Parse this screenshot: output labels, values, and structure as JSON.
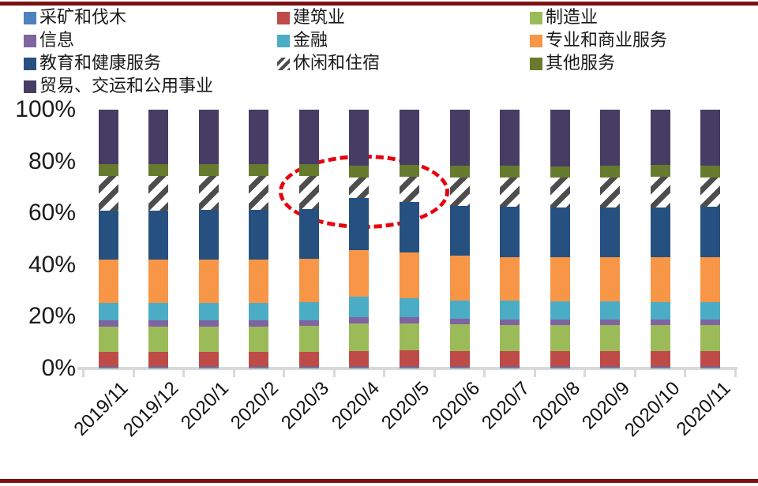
{
  "page": {
    "background": "#ffffff",
    "top_rule_color": "#7a1113",
    "bottom_rule_color": "#7a1113"
  },
  "axis": {
    "line_color": "#d9d9d9",
    "label_color": "#1a1a1a"
  },
  "chart_data": {
    "type": "bar",
    "stacked": true,
    "units": "percent-of-total",
    "title": "",
    "xlabel": "",
    "ylabel": "",
    "ylim": [
      0,
      100
    ],
    "grid": false,
    "legend_position": "top",
    "y_ticks": [
      "0%",
      "20%",
      "40%",
      "60%",
      "80%",
      "100%"
    ],
    "categories": [
      "2019/11",
      "2019/12",
      "2020/1",
      "2020/2",
      "2020/3",
      "2020/4",
      "2020/5",
      "2020/6",
      "2020/7",
      "2020/8",
      "2020/9",
      "2020/10",
      "2020/11"
    ],
    "series": [
      {
        "name": "采矿和伐木",
        "color": "#4F81BD",
        "values": [
          0.5,
          0.5,
          0.5,
          0.5,
          0.5,
          0.6,
          0.6,
          0.5,
          0.5,
          0.5,
          0.5,
          0.5,
          0.5
        ]
      },
      {
        "name": "建筑业",
        "color": "#BE4B48",
        "values": [
          5.8,
          5.8,
          5.8,
          5.8,
          5.9,
          6.1,
          6.4,
          6.2,
          6.1,
          6.1,
          6.1,
          6.1,
          6.1
        ]
      },
      {
        "name": "制造业",
        "color": "#9BBB59",
        "values": [
          10.0,
          10.0,
          10.0,
          10.0,
          10.1,
          10.6,
          10.5,
          10.3,
          10.2,
          10.1,
          10.1,
          10.1,
          10.1
        ]
      },
      {
        "name": "信息",
        "color": "#8064A2",
        "values": [
          2.2,
          2.2,
          2.2,
          2.2,
          2.2,
          2.4,
          2.3,
          2.2,
          2.2,
          2.2,
          2.2,
          2.2,
          2.2
        ]
      },
      {
        "name": "金融",
        "color": "#4BACC6",
        "values": [
          6.8,
          6.8,
          6.8,
          6.8,
          6.9,
          7.9,
          7.5,
          7.2,
          7.1,
          7.0,
          7.0,
          6.9,
          6.9
        ]
      },
      {
        "name": "专业和商业服务",
        "color": "#F79646",
        "values": [
          16.7,
          16.7,
          16.8,
          16.8,
          16.9,
          18.0,
          17.6,
          17.1,
          17.0,
          17.0,
          17.1,
          17.2,
          17.2
        ]
      },
      {
        "name": "教育和健康服务",
        "color": "#255080",
        "values": [
          19.1,
          19.1,
          19.2,
          19.2,
          19.2,
          20.2,
          19.6,
          19.3,
          19.3,
          19.3,
          19.3,
          19.4,
          19.5
        ]
      },
      {
        "name": "休闲和住宿",
        "color": "#4D4D4D",
        "pattern": "diagonal-hatch",
        "values": [
          13.2,
          13.2,
          13.2,
          13.2,
          12.6,
          8.1,
          9.7,
          11.0,
          11.3,
          11.5,
          11.6,
          11.7,
          11.4
        ]
      },
      {
        "name": "其他服务",
        "color": "#667B2E",
        "values": [
          4.6,
          4.6,
          4.6,
          4.6,
          4.6,
          4.4,
          4.4,
          4.5,
          4.5,
          4.5,
          4.5,
          4.5,
          4.6
        ]
      },
      {
        "name": "贸易、交运和公用事业",
        "color": "#473C63",
        "values": [
          21.1,
          21.1,
          20.9,
          20.9,
          21.1,
          21.7,
          21.4,
          21.7,
          21.8,
          21.8,
          21.6,
          21.4,
          21.5
        ]
      }
    ],
    "annotation": {
      "shape": "dashed-ellipse",
      "color": "#E8000D",
      "target_series": "休闲和住宿",
      "categories_covered": [
        "2020/3",
        "2020/4",
        "2020/5"
      ]
    }
  }
}
